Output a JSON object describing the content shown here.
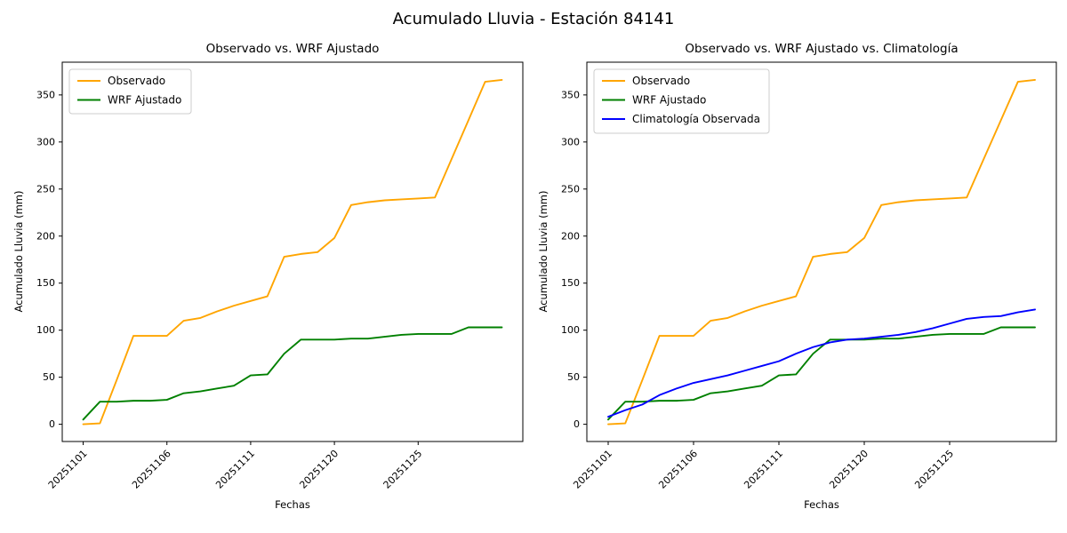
{
  "figure": {
    "suptitle": "Acumulado Lluvia - Estación 84141",
    "background": "#ffffff"
  },
  "chart_data": [
    {
      "type": "line",
      "title": "Observado vs. WRF Ajustado",
      "xlabel": "Fechas",
      "ylabel": "Acumulado Lluvia (mm)",
      "x": [
        "20251101",
        "20251102",
        "20251103",
        "20251104",
        "20251105",
        "20251106",
        "20251107",
        "20251108",
        "20251109",
        "20251110",
        "20251111",
        "20251112",
        "20251117",
        "20251118",
        "20251119",
        "20251120",
        "20251121",
        "20251122",
        "20251123",
        "20251124",
        "20251125",
        "20251126",
        "20251127",
        "20251128",
        "20251129",
        "20251130"
      ],
      "x_tick_indices": [
        0,
        5,
        10,
        15,
        20
      ],
      "x_tick_labels": [
        "20251101",
        "20251106",
        "20251111",
        "20251120",
        "20251125"
      ],
      "x_tick_rotation": 45,
      "y_ticks": [
        0,
        50,
        100,
        150,
        200,
        250,
        300,
        350
      ],
      "xlim": [
        -1.25,
        26.25
      ],
      "ylim": [
        -18.3,
        384.8
      ],
      "grid": false,
      "legend_position": "upper left",
      "series": [
        {
          "name": "Observado",
          "color": "#FFA500",
          "values": [
            0,
            1,
            47,
            94,
            94,
            94,
            110,
            113,
            120,
            126,
            131,
            136,
            178,
            181,
            183,
            198,
            233,
            236,
            238,
            239,
            240,
            241,
            282,
            323,
            364,
            366
          ]
        },
        {
          "name": "WRF Ajustado",
          "color": "#008000",
          "values": [
            5,
            24,
            24,
            25,
            25,
            26,
            33,
            35,
            38,
            41,
            52,
            53,
            75,
            90,
            90,
            90,
            91,
            91,
            93,
            95,
            96,
            96,
            96,
            103,
            103,
            103
          ]
        }
      ]
    },
    {
      "type": "line",
      "title": "Observado vs. WRF Ajustado vs. Climatología",
      "xlabel": "Fechas",
      "ylabel": "Acumulado Lluvia (mm)",
      "x": [
        "20251101",
        "20251102",
        "20251103",
        "20251104",
        "20251105",
        "20251106",
        "20251107",
        "20251108",
        "20251109",
        "20251110",
        "20251111",
        "20251112",
        "20251117",
        "20251118",
        "20251119",
        "20251120",
        "20251121",
        "20251122",
        "20251123",
        "20251124",
        "20251125",
        "20251126",
        "20251127",
        "20251128",
        "20251129",
        "20251130"
      ],
      "x_tick_indices": [
        0,
        5,
        10,
        15,
        20
      ],
      "x_tick_labels": [
        "20251101",
        "20251106",
        "20251111",
        "20251120",
        "20251125"
      ],
      "x_tick_rotation": 45,
      "y_ticks": [
        0,
        50,
        100,
        150,
        200,
        250,
        300,
        350
      ],
      "xlim": [
        -1.25,
        26.25
      ],
      "ylim": [
        -18.3,
        384.8
      ],
      "grid": false,
      "legend_position": "upper left",
      "series": [
        {
          "name": "Observado",
          "color": "#FFA500",
          "values": [
            0,
            1,
            47,
            94,
            94,
            94,
            110,
            113,
            120,
            126,
            131,
            136,
            178,
            181,
            183,
            198,
            233,
            236,
            238,
            239,
            240,
            241,
            282,
            323,
            364,
            366
          ]
        },
        {
          "name": "WRF Ajustado",
          "color": "#008000",
          "values": [
            5,
            24,
            24,
            25,
            25,
            26,
            33,
            35,
            38,
            41,
            52,
            53,
            75,
            90,
            90,
            90,
            91,
            91,
            93,
            95,
            96,
            96,
            96,
            103,
            103,
            103
          ]
        },
        {
          "name": "Climatología Observada",
          "color": "#0000FF",
          "values": [
            8,
            15,
            21,
            31,
            38,
            44,
            48,
            52,
            57,
            62,
            67,
            75,
            82,
            87,
            90,
            91,
            93,
            95,
            98,
            102,
            107,
            112,
            114,
            115,
            119,
            122
          ]
        }
      ]
    }
  ]
}
